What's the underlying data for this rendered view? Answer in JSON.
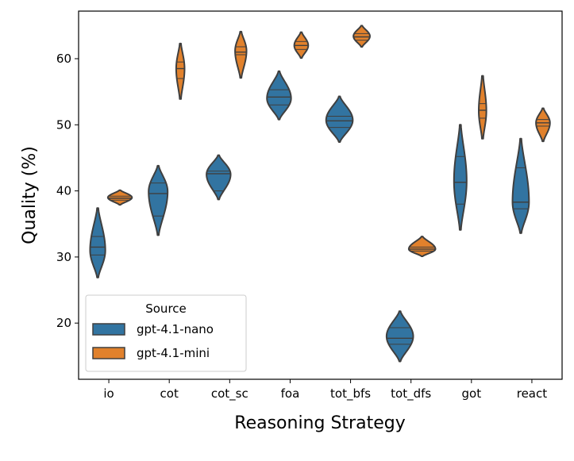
{
  "chart_data": {
    "type": "violin",
    "xlabel": "Reasoning Strategy",
    "ylabel": "Quality (%)",
    "ylim": [
      11.5,
      67.2
    ],
    "yticks": [
      20,
      30,
      40,
      50,
      60
    ],
    "categories": [
      "io",
      "cot",
      "cot_sc",
      "foa",
      "tot_bfs",
      "tot_dfs",
      "got",
      "react"
    ],
    "grid": false,
    "legend": {
      "title": "Source",
      "placement": "lower-left"
    },
    "series": [
      {
        "name": "gpt-4.1-nano",
        "color": "#3274a1",
        "violins": [
          {
            "min": 26.9,
            "max": 37.4,
            "mode": 31.0,
            "q1": 30.3,
            "median": 31.5,
            "q3": 33.1,
            "rel_width": 0.55
          },
          {
            "min": 33.3,
            "max": 43.8,
            "mode": 39.9,
            "q1": 36.2,
            "median": 39.6,
            "q3": 41.2,
            "rel_width": 0.7
          },
          {
            "min": 38.7,
            "max": 45.4,
            "mode": 42.5,
            "q1": 40.0,
            "median": 42.6,
            "q3": 43.0,
            "rel_width": 0.9
          },
          {
            "min": 50.8,
            "max": 58.1,
            "mode": 54.0,
            "q1": 53.0,
            "median": 54.2,
            "q3": 55.3,
            "rel_width": 0.9
          },
          {
            "min": 47.4,
            "max": 54.3,
            "mode": 50.7,
            "q1": 49.6,
            "median": 50.6,
            "q3": 51.3,
            "rel_width": 1.0
          },
          {
            "min": 14.2,
            "max": 21.8,
            "mode": 18.0,
            "q1": 16.8,
            "median": 17.7,
            "q3": 19.3,
            "rel_width": 1.0
          },
          {
            "min": 34.1,
            "max": 50.0,
            "mode": 41.5,
            "q1": 38.0,
            "median": 41.3,
            "q3": 45.2,
            "rel_width": 0.45
          },
          {
            "min": 33.6,
            "max": 47.9,
            "mode": 38.3,
            "q1": 37.3,
            "median": 38.3,
            "q3": 43.5,
            "rel_width": 0.6
          }
        ]
      },
      {
        "name": "gpt-4.1-mini",
        "color": "#e1812c",
        "violins": [
          {
            "min": 37.9,
            "max": 40.1,
            "mode": 39.0,
            "q1": 38.6,
            "median": 38.9,
            "q3": 39.2,
            "rel_width": 0.9
          },
          {
            "min": 53.9,
            "max": 62.3,
            "mode": 58.5,
            "q1": 57.0,
            "median": 58.5,
            "q3": 59.5,
            "rel_width": 0.28
          },
          {
            "min": 57.1,
            "max": 64.1,
            "mode": 61.2,
            "q1": 60.6,
            "median": 61.0,
            "q3": 61.8,
            "rel_width": 0.4
          },
          {
            "min": 60.1,
            "max": 64.0,
            "mode": 62.0,
            "q1": 61.4,
            "median": 62.0,
            "q3": 62.6,
            "rel_width": 0.5
          },
          {
            "min": 61.8,
            "max": 65.0,
            "mode": 63.4,
            "q1": 62.8,
            "median": 63.3,
            "q3": 63.8,
            "rel_width": 0.6
          },
          {
            "min": 30.1,
            "max": 33.1,
            "mode": 31.2,
            "q1": 30.9,
            "median": 31.2,
            "q3": 31.5,
            "rel_width": 1.0
          },
          {
            "min": 47.9,
            "max": 57.4,
            "mode": 52.1,
            "q1": 51.0,
            "median": 52.2,
            "q3": 53.2,
            "rel_width": 0.25
          },
          {
            "min": 47.5,
            "max": 52.5,
            "mode": 50.3,
            "q1": 49.8,
            "median": 50.3,
            "q3": 50.8,
            "rel_width": 0.5
          }
        ]
      }
    ]
  }
}
